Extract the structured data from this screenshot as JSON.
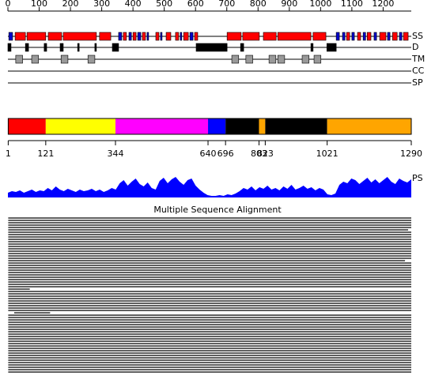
{
  "sequence_length": 1290,
  "ruler": {
    "ticks": [
      0,
      100,
      200,
      300,
      400,
      500,
      600,
      700,
      800,
      900,
      1000,
      1100,
      1200
    ]
  },
  "tracks": {
    "ss": {
      "label": "SS",
      "helix_color": "#ff0000",
      "strand_color": "#0000cc",
      "helices": [
        [
          23,
          56
        ],
        [
          61,
          121
        ],
        [
          129,
          172
        ],
        [
          177,
          283
        ],
        [
          293,
          329
        ],
        [
          369,
          379
        ],
        [
          400,
          410
        ],
        [
          430,
          440
        ],
        [
          473,
          483
        ],
        [
          506,
          521
        ],
        [
          536,
          546
        ],
        [
          562,
          577
        ],
        [
          597,
          607
        ],
        [
          701,
          746
        ],
        [
          751,
          804
        ],
        [
          817,
          858
        ],
        [
          863,
          969
        ],
        [
          976,
          1017
        ],
        [
          1083,
          1093
        ],
        [
          1118,
          1128
        ],
        [
          1149,
          1161
        ],
        [
          1189,
          1209
        ],
        [
          1230,
          1245
        ],
        [
          1265,
          1280
        ]
      ],
      "strands": [
        [
          3,
          15
        ],
        [
          354,
          364
        ],
        [
          387,
          395
        ],
        [
          415,
          425
        ],
        [
          445,
          450
        ],
        [
          488,
          493
        ],
        [
          551,
          556
        ],
        [
          582,
          592
        ],
        [
          1050,
          1060
        ],
        [
          1070,
          1078
        ],
        [
          1100,
          1108
        ],
        [
          1136,
          1144
        ],
        [
          1171,
          1179
        ],
        [
          1214,
          1222
        ],
        [
          1252,
          1260
        ]
      ]
    },
    "d": {
      "label": "D",
      "color": "#000000",
      "regions": [
        [
          0,
          10
        ],
        [
          56,
          66
        ],
        [
          116,
          124
        ],
        [
          167,
          177
        ],
        [
          223,
          228
        ],
        [
          278,
          283
        ],
        [
          334,
          354
        ],
        [
          602,
          701
        ],
        [
          744,
          754
        ],
        [
          969,
          976
        ],
        [
          1020,
          1050
        ]
      ]
    },
    "tm": {
      "label": "TM",
      "color": "#999999",
      "regions": [
        [
          25,
          47
        ],
        [
          76,
          98
        ],
        [
          170,
          192
        ],
        [
          256,
          278
        ],
        [
          716,
          738
        ],
        [
          761,
          783
        ],
        [
          835,
          857
        ],
        [
          863,
          885
        ],
        [
          941,
          963
        ],
        [
          979,
          1001
        ]
      ]
    },
    "cc": {
      "label": "CC"
    },
    "sp": {
      "label": "SP"
    }
  },
  "domains": {
    "boundaries": [
      1,
      121,
      344,
      640,
      696,
      803,
      823,
      1021,
      1290
    ],
    "colors": [
      "#ff0000",
      "#ffff00",
      "#ff00ff",
      "#0000ff",
      "#000000",
      "#ffa500",
      "#000000",
      "#ffa500"
    ]
  },
  "ps": {
    "label": "PS",
    "color": "#0000ff",
    "values": [
      6,
      8,
      7,
      9,
      6,
      8,
      10,
      7,
      9,
      8,
      12,
      9,
      14,
      10,
      8,
      11,
      9,
      7,
      10,
      8,
      9,
      11,
      8,
      10,
      7,
      9,
      12,
      10,
      18,
      22,
      15,
      20,
      24,
      17,
      14,
      19,
      12,
      10,
      21,
      25,
      18,
      23,
      26,
      20,
      16,
      22,
      24,
      15,
      10,
      6,
      3,
      2,
      2,
      3,
      2,
      4,
      3,
      5,
      8,
      12,
      10,
      14,
      9,
      13,
      11,
      15,
      10,
      12,
      9,
      14,
      11,
      16,
      10,
      12,
      15,
      11,
      13,
      9,
      12,
      10,
      4,
      3,
      5,
      16,
      20,
      18,
      24,
      22,
      17,
      21,
      25,
      19,
      23,
      18,
      22,
      26,
      20,
      17,
      24,
      21,
      19,
      23
    ]
  },
  "msa": {
    "title": "Multiple Sequence Alignment",
    "rows": [
      [
        1,
        1290
      ],
      [
        1,
        1290
      ],
      [
        1,
        1290
      ],
      [
        1,
        1290
      ],
      [
        1,
        1290
      ],
      [
        1,
        1280
      ],
      [
        1,
        1290
      ],
      [
        1,
        1290
      ],
      [
        1,
        1290
      ],
      [
        1,
        1290
      ],
      [
        1,
        1290
      ],
      [
        1,
        1290
      ],
      [
        1,
        1290
      ],
      [
        1,
        1290
      ],
      [
        1,
        1290
      ],
      [
        1,
        1290
      ],
      [
        1,
        1290
      ],
      [
        1,
        1290
      ],
      [
        1,
        1270
      ],
      [
        1,
        1290
      ],
      [
        1,
        1290
      ],
      [
        1,
        1290
      ],
      [
        1,
        1290
      ],
      [
        1,
        1290
      ],
      [
        1,
        1290
      ],
      [
        1,
        1290
      ],
      [
        1,
        1290
      ],
      [
        1,
        1290
      ],
      [
        1,
        1290
      ],
      [
        1,
        1290
      ],
      [
        1,
        70
      ],
      [
        1,
        1290
      ],
      [
        1,
        1290
      ],
      [
        1,
        1290
      ],
      [
        1,
        1290
      ],
      [
        1,
        1290
      ],
      [
        1,
        1290
      ],
      [
        1,
        1290
      ],
      [
        1,
        1290
      ],
      [
        1,
        1290
      ],
      [
        20,
        135
      ],
      [
        1,
        1290
      ],
      [
        1,
        1290
      ],
      [
        1,
        1290
      ],
      [
        1,
        1290
      ],
      [
        1,
        1290
      ],
      [
        1,
        1290
      ],
      [
        1,
        1290
      ],
      [
        1,
        1290
      ],
      [
        1,
        1290
      ],
      [
        1,
        1290
      ],
      [
        1,
        1290
      ],
      [
        1,
        1290
      ],
      [
        1,
        1290
      ],
      [
        1,
        1290
      ],
      [
        1,
        1290
      ],
      [
        1,
        1290
      ],
      [
        1,
        1290
      ],
      [
        1,
        1290
      ],
      [
        1,
        1290
      ],
      [
        1,
        1290
      ],
      [
        1,
        1290
      ],
      [
        1,
        1290
      ],
      [
        1,
        1290
      ],
      [
        1,
        1290
      ],
      [
        1,
        1290
      ]
    ]
  }
}
